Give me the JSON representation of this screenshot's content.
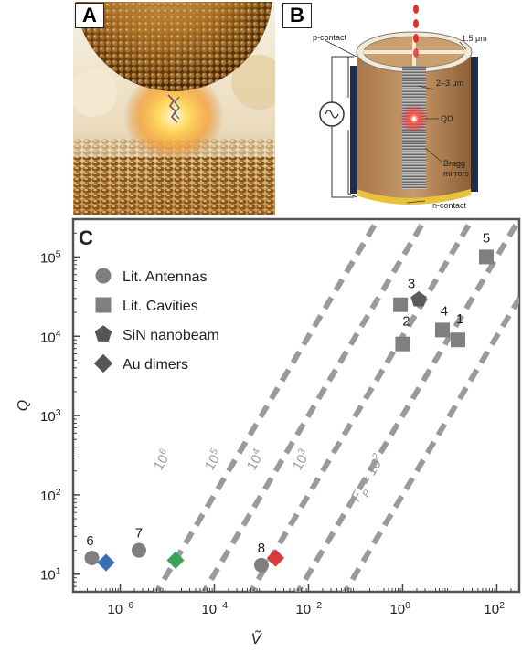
{
  "panels": {
    "a": {
      "label": "A"
    },
    "b": {
      "label": "B",
      "annotations": {
        "p_contact": "p-contact",
        "n_contact": "n-contact",
        "width": "1.5 μm",
        "height": "2–3 μm",
        "qd": "QD",
        "bragg1": "Bragg",
        "bragg2": "mirrors"
      }
    },
    "c": {
      "label": "C"
    }
  },
  "chart_data": {
    "type": "scatter",
    "xlabel": "Ṽ",
    "ylabel": "Q",
    "xscale": "log",
    "yscale": "log",
    "xlim": [
      1e-07,
      300
    ],
    "ylim": [
      6,
      300000
    ],
    "x_ticks": [
      {
        "value": 1e-06,
        "label": "10",
        "exp": "−6"
      },
      {
        "value": 0.0001,
        "label": "10",
        "exp": "−4"
      },
      {
        "value": 0.01,
        "label": "10",
        "exp": "−2"
      },
      {
        "value": 1,
        "label": "10",
        "exp": "0"
      },
      {
        "value": 100,
        "label": "10",
        "exp": "2"
      }
    ],
    "y_ticks": [
      {
        "value": 10,
        "label": "10",
        "exp": "1"
      },
      {
        "value": 100,
        "label": "10",
        "exp": "2"
      },
      {
        "value": 1000,
        "label": "10",
        "exp": "3"
      },
      {
        "value": 10000,
        "label": "10",
        "exp": "4"
      },
      {
        "value": 100000,
        "label": "10",
        "exp": "5"
      }
    ],
    "legend": {
      "placement": "top-left",
      "items": [
        {
          "marker": "circle",
          "label": "Lit. Antennas"
        },
        {
          "marker": "square",
          "label": "Lit. Cavities"
        },
        {
          "marker": "pentagon",
          "label": "SiN nanobeam"
        },
        {
          "marker": "diamond",
          "label": "Au dimers"
        }
      ]
    },
    "purcell_lines": [
      {
        "fp": 1000000,
        "label": "10",
        "exp": "6"
      },
      {
        "fp": 100000,
        "label": "10",
        "exp": "5"
      },
      {
        "fp": 10000,
        "label": "10",
        "exp": "4"
      },
      {
        "fp": 1000,
        "label": "10",
        "exp": "3"
      },
      {
        "fp": 100,
        "label": "F",
        "sub": "P",
        "rest": " = 10",
        "exp": "2"
      }
    ],
    "points": [
      {
        "set": "antenna",
        "marker": "circle",
        "x": 2.5e-07,
        "y": 16,
        "color": "#7f7f7f",
        "label": "6"
      },
      {
        "set": "antenna",
        "marker": "circle",
        "x": 2.5e-06,
        "y": 20,
        "color": "#7f7f7f",
        "label": "7"
      },
      {
        "set": "antenna",
        "marker": "circle",
        "x": 0.001,
        "y": 13,
        "color": "#7f7f7f",
        "label": "8"
      },
      {
        "set": "cavity",
        "marker": "square",
        "x": 0.9,
        "y": 25000,
        "color": "#7f7f7f",
        "label": "3"
      },
      {
        "set": "cavity",
        "marker": "square",
        "x": 1.0,
        "y": 8000,
        "color": "#7f7f7f",
        "label": "2"
      },
      {
        "set": "cavity",
        "marker": "square",
        "x": 7,
        "y": 12000,
        "color": "#7f7f7f",
        "label": "4"
      },
      {
        "set": "cavity",
        "marker": "square",
        "x": 15,
        "y": 9000,
        "color": "#7f7f7f",
        "label": "1"
      },
      {
        "set": "cavity",
        "marker": "square",
        "x": 60,
        "y": 100000,
        "color": "#7f7f7f",
        "label": "5"
      },
      {
        "set": "nanobeam",
        "marker": "pentagon",
        "x": 2.2,
        "y": 29000,
        "color": "#5a5a5a",
        "label": ""
      },
      {
        "set": "dimer",
        "marker": "diamond",
        "x": 5e-07,
        "y": 14,
        "color": "#3b6db3",
        "label": ""
      },
      {
        "set": "dimer",
        "marker": "diamond",
        "x": 1.5e-05,
        "y": 15,
        "color": "#3aa556",
        "label": ""
      },
      {
        "set": "dimer",
        "marker": "diamond",
        "x": 0.002,
        "y": 16,
        "color": "#d63b3b",
        "label": ""
      }
    ]
  }
}
